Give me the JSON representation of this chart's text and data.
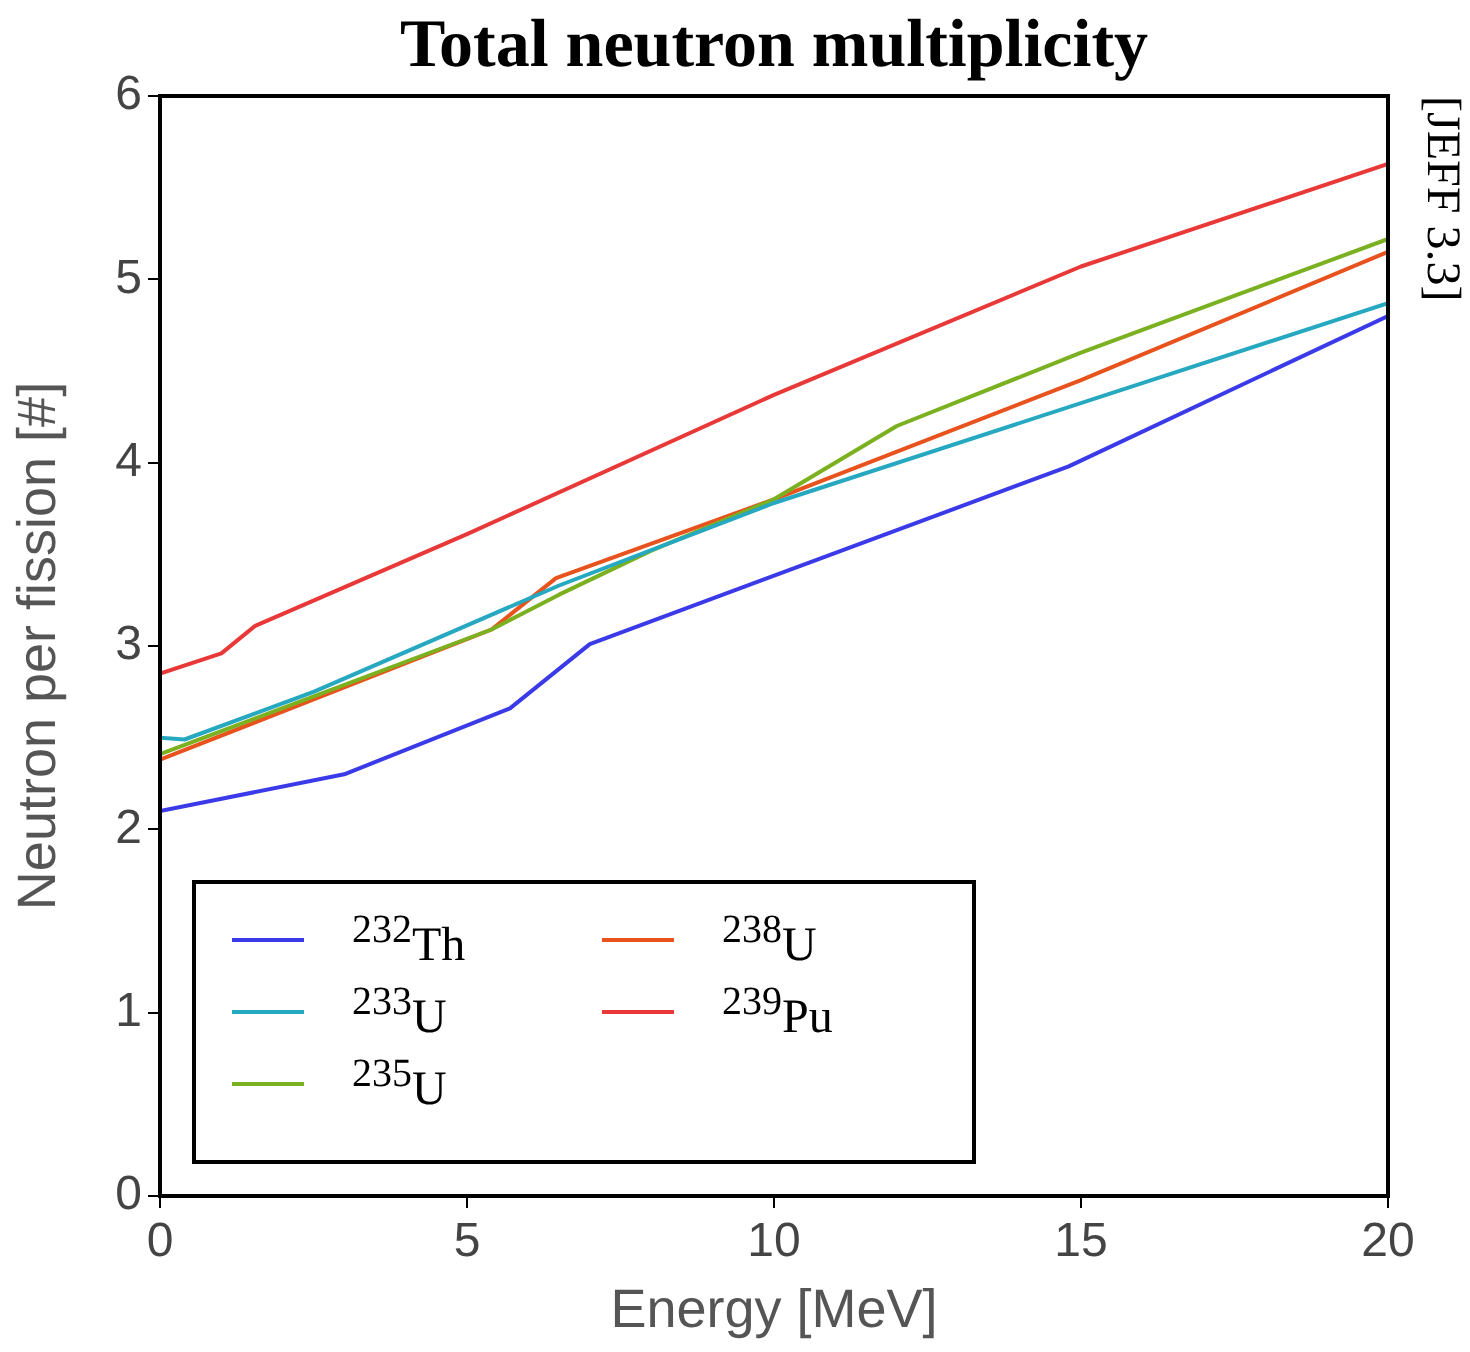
{
  "chart_data": {
    "type": "line",
    "title": "Total neutron multiplicity",
    "xlabel": "Energy [MeV]",
    "ylabel": "Neutron per fission [#]",
    "annotations": [
      "[JEFF 3.3]"
    ],
    "xlim": [
      0,
      20
    ],
    "xticks": [
      0,
      5,
      10,
      15,
      20
    ],
    "ylim": [
      0,
      6
    ],
    "yticks": [
      0,
      1,
      2,
      3,
      4,
      5,
      6
    ],
    "grid": false,
    "legend": "bottom left",
    "marker": "none",
    "line_style": "solid",
    "series": [
      {
        "name": "$^{232}$Th",
        "color": "#3a3ae8",
        "x": [
          0,
          3,
          5.7,
          7,
          14.8,
          20
        ],
        "values": [
          2.1,
          2.3,
          2.66,
          3.01,
          3.98,
          4.8
        ]
      },
      {
        "name": "$^{233}$U",
        "color": "#25a8c0",
        "x": [
          0,
          0.4,
          2.5,
          6.5,
          10,
          20
        ],
        "values": [
          2.5,
          2.49,
          2.75,
          3.33,
          3.78,
          4.87
        ]
      },
      {
        "name": "$^{235}$U",
        "color": "#7bb020",
        "x": [
          0,
          5.4,
          6.5,
          8,
          10,
          12,
          15,
          20
        ],
        "values": [
          2.41,
          3.09,
          3.28,
          3.52,
          3.8,
          4.2,
          4.6,
          5.22
        ]
      },
      {
        "name": "$^{238}$U",
        "color": "#e8521c",
        "x": [
          0,
          5.4,
          6.45,
          10,
          15,
          20
        ],
        "values": [
          2.38,
          3.09,
          3.37,
          3.8,
          4.45,
          5.15
        ]
      },
      {
        "name": "$^{239}$Pu",
        "color": "#e83838",
        "x": [
          0,
          1,
          1.55,
          5,
          10,
          15,
          20
        ],
        "values": [
          2.85,
          2.96,
          3.11,
          3.61,
          4.37,
          5.07,
          5.63
        ]
      }
    ]
  }
}
